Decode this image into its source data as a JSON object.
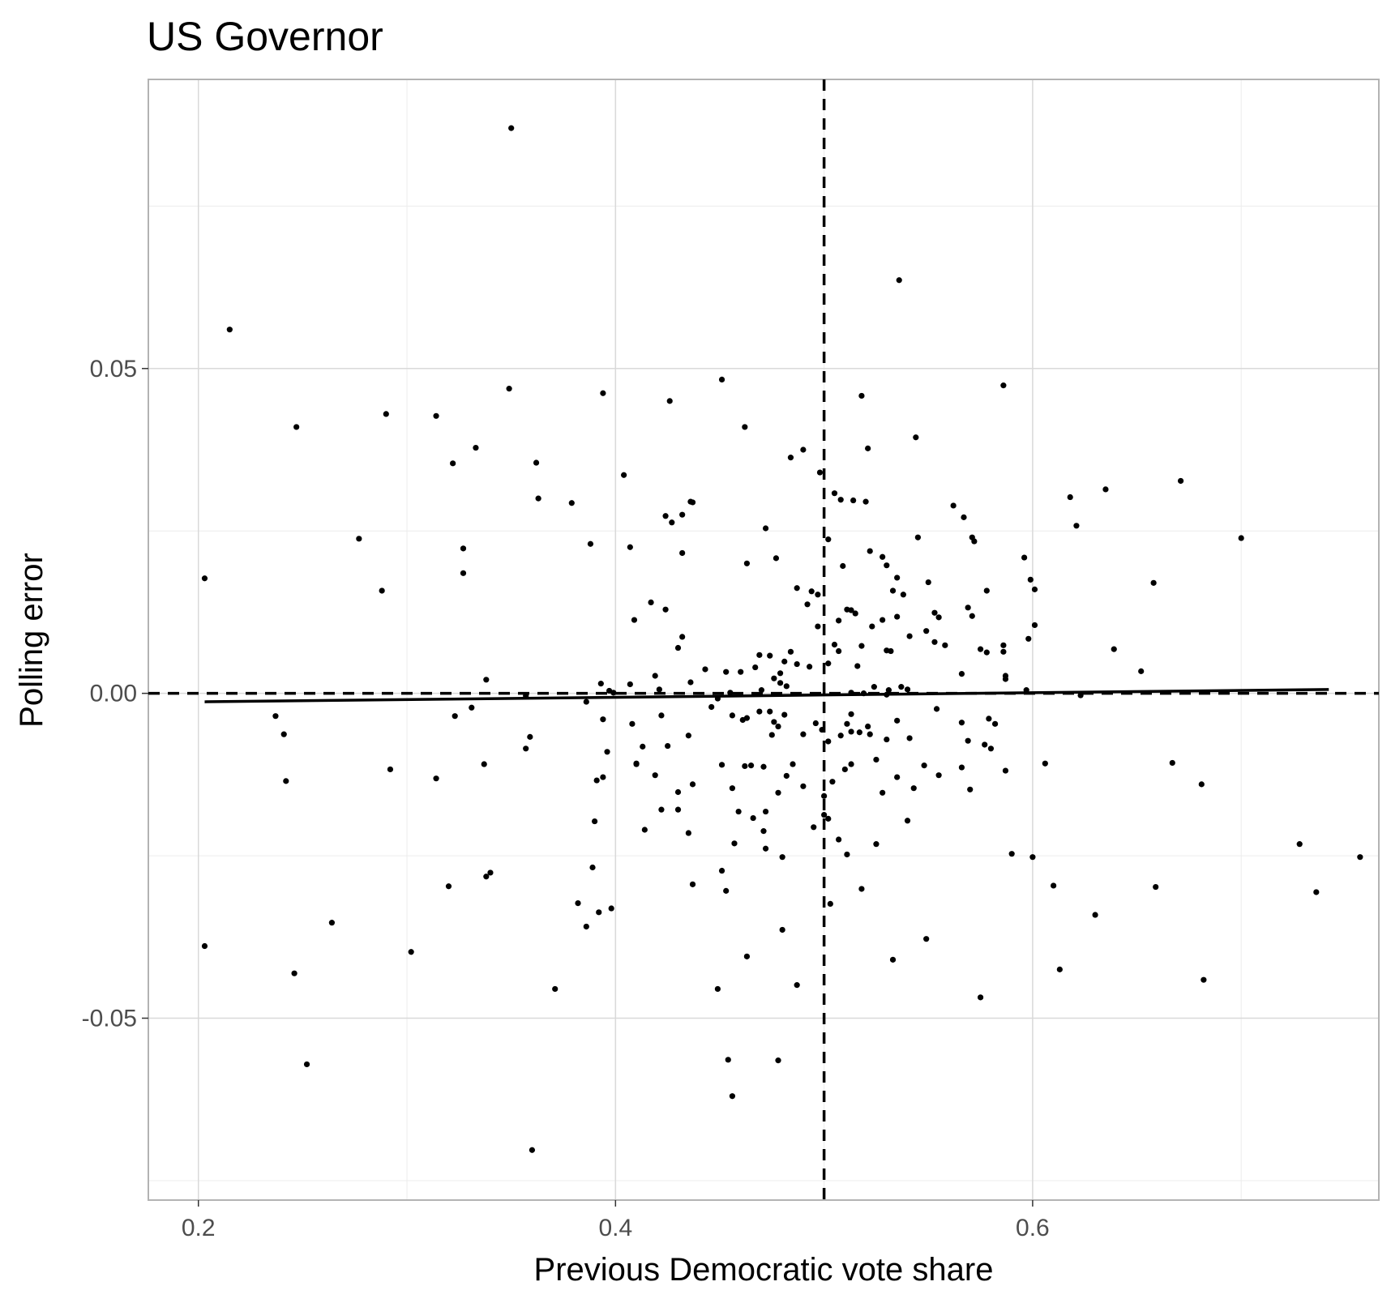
{
  "chart_data": {
    "type": "scatter",
    "title": "US Governor",
    "xlabel": "Previous Democratic vote share",
    "ylabel": "Polling error",
    "xlim": [
      0.176,
      0.766
    ],
    "ylim": [
      -0.078,
      0.0945
    ],
    "x_ticks": [
      0.2,
      0.4,
      0.6
    ],
    "x_tick_labels": [
      "0.2",
      "0.4",
      "0.6"
    ],
    "y_ticks": [
      -0.05,
      0.0,
      0.05
    ],
    "y_tick_labels": [
      "-0.05",
      "0.00",
      "0.05"
    ],
    "grid": true,
    "colors": {
      "points": "#000000",
      "panel_border": "#b3b3b3",
      "grid_major": "#d9d9d9",
      "grid_minor": "#ececec"
    },
    "reference_lines": [
      {
        "orientation": "vertical",
        "value": 0.5,
        "style": "dashed"
      },
      {
        "orientation": "horizontal",
        "value": 0.0,
        "style": "dashed"
      }
    ],
    "fit_line": {
      "x": [
        0.203,
        0.742
      ],
      "y": [
        -0.0013,
        0.0006
      ]
    },
    "points": [
      [
        0.35,
        0.087
      ],
      [
        0.536,
        0.0636
      ],
      [
        0.215,
        0.056
      ],
      [
        0.247,
        0.041
      ],
      [
        0.29,
        0.043
      ],
      [
        0.314,
        0.0427
      ],
      [
        0.349,
        0.0469
      ],
      [
        0.394,
        0.0462
      ],
      [
        0.426,
        0.045
      ],
      [
        0.451,
        0.0483
      ],
      [
        0.462,
        0.041
      ],
      [
        0.518,
        0.0458
      ],
      [
        0.586,
        0.0474
      ],
      [
        0.544,
        0.0394
      ],
      [
        0.322,
        0.0354
      ],
      [
        0.333,
        0.0378
      ],
      [
        0.362,
        0.0355
      ],
      [
        0.404,
        0.0336
      ],
      [
        0.484,
        0.0363
      ],
      [
        0.49,
        0.0375
      ],
      [
        0.498,
        0.034
      ],
      [
        0.521,
        0.0377
      ],
      [
        0.363,
        0.03
      ],
      [
        0.379,
        0.0293
      ],
      [
        0.424,
        0.0273
      ],
      [
        0.427,
        0.0263
      ],
      [
        0.432,
        0.0275
      ],
      [
        0.436,
        0.0295
      ],
      [
        0.437,
        0.0294
      ],
      [
        0.472,
        0.0254
      ],
      [
        0.505,
        0.0308
      ],
      [
        0.508,
        0.0298
      ],
      [
        0.514,
        0.0297
      ],
      [
        0.52,
        0.0295
      ],
      [
        0.562,
        0.0289
      ],
      [
        0.567,
        0.0271
      ],
      [
        0.571,
        0.024
      ],
      [
        0.572,
        0.0234
      ],
      [
        0.618,
        0.0302
      ],
      [
        0.621,
        0.0258
      ],
      [
        0.635,
        0.0314
      ],
      [
        0.671,
        0.0327
      ],
      [
        0.7,
        0.0239
      ],
      [
        0.277,
        0.0238
      ],
      [
        0.327,
        0.0223
      ],
      [
        0.327,
        0.0185
      ],
      [
        0.388,
        0.023
      ],
      [
        0.407,
        0.0225
      ],
      [
        0.432,
        0.0216
      ],
      [
        0.463,
        0.02
      ],
      [
        0.477,
        0.0208
      ],
      [
        0.502,
        0.0237
      ],
      [
        0.509,
        0.0196
      ],
      [
        0.522,
        0.0219
      ],
      [
        0.528,
        0.021
      ],
      [
        0.53,
        0.0197
      ],
      [
        0.535,
        0.0178
      ],
      [
        0.545,
        0.024
      ],
      [
        0.596,
        0.0209
      ],
      [
        0.599,
        0.0175
      ],
      [
        0.601,
        0.016
      ],
      [
        0.658,
        0.017
      ],
      [
        0.203,
        0.0177
      ],
      [
        0.288,
        0.0158
      ],
      [
        0.487,
        0.0162
      ],
      [
        0.494,
        0.0157
      ],
      [
        0.497,
        0.0152
      ],
      [
        0.533,
        0.0158
      ],
      [
        0.538,
        0.0152
      ],
      [
        0.55,
        0.0171
      ],
      [
        0.578,
        0.0158
      ],
      [
        0.417,
        0.014
      ],
      [
        0.424,
        0.0129
      ],
      [
        0.409,
        0.0113
      ],
      [
        0.492,
        0.0137
      ],
      [
        0.507,
        0.0112
      ],
      [
        0.511,
        0.0129
      ],
      [
        0.513,
        0.0128
      ],
      [
        0.523,
        0.0103
      ],
      [
        0.528,
        0.0113
      ],
      [
        0.535,
        0.0118
      ],
      [
        0.549,
        0.0096
      ],
      [
        0.553,
        0.0124
      ],
      [
        0.555,
        0.0117
      ],
      [
        0.569,
        0.0132
      ],
      [
        0.571,
        0.0119
      ],
      [
        0.497,
        0.0103
      ],
      [
        0.43,
        0.007
      ],
      [
        0.432,
        0.0087
      ],
      [
        0.469,
        0.0059
      ],
      [
        0.474,
        0.0058
      ],
      [
        0.484,
        0.0064
      ],
      [
        0.505,
        0.0075
      ],
      [
        0.507,
        0.0065
      ],
      [
        0.515,
        0.0123
      ],
      [
        0.518,
        0.0073
      ],
      [
        0.53,
        0.0066
      ],
      [
        0.532,
        0.0065
      ],
      [
        0.541,
        0.0088
      ],
      [
        0.553,
        0.0079
      ],
      [
        0.558,
        0.0074
      ],
      [
        0.566,
        0.003
      ],
      [
        0.575,
        0.0068
      ],
      [
        0.578,
        0.0063
      ],
      [
        0.586,
        0.0074
      ],
      [
        0.586,
        0.0064
      ],
      [
        0.598,
        0.0084
      ],
      [
        0.601,
        0.0105
      ],
      [
        0.639,
        0.0068
      ],
      [
        0.652,
        0.0034
      ],
      [
        0.338,
        0.0021
      ],
      [
        0.393,
        0.0015
      ],
      [
        0.407,
        0.0014
      ],
      [
        0.419,
        0.0027
      ],
      [
        0.436,
        0.0017
      ],
      [
        0.443,
        0.0037
      ],
      [
        0.453,
        0.0033
      ],
      [
        0.46,
        0.0033
      ],
      [
        0.467,
        0.004
      ],
      [
        0.476,
        0.0023
      ],
      [
        0.479,
        0.0031
      ],
      [
        0.481,
        0.0049
      ],
      [
        0.487,
        0.0045
      ],
      [
        0.493,
        0.0041
      ],
      [
        0.502,
        0.0046
      ],
      [
        0.516,
        0.0042
      ],
      [
        0.537,
        0.001
      ],
      [
        0.54,
        0.0006
      ],
      [
        0.587,
        0.0027
      ],
      [
        0.587,
        0.0022
      ],
      [
        0.397,
        0.0004
      ],
      [
        0.399,
        0.0001
      ],
      [
        0.421,
        0.0006
      ],
      [
        0.455,
        0.0001
      ],
      [
        0.47,
        0.0005
      ],
      [
        0.479,
        0.0016
      ],
      [
        0.482,
        0.0011
      ],
      [
        0.513,
        0.0001
      ],
      [
        0.519,
        0.0
      ],
      [
        0.524,
        0.001
      ],
      [
        0.53,
        -0.0002
      ],
      [
        0.531,
        0.0005
      ],
      [
        0.597,
        0.0005
      ],
      [
        0.623,
        -0.0003
      ],
      [
        0.237,
        -0.0035
      ],
      [
        0.241,
        -0.0063
      ],
      [
        0.323,
        -0.0035
      ],
      [
        0.331,
        -0.0022
      ],
      [
        0.357,
        -0.0085
      ],
      [
        0.359,
        -0.0067
      ],
      [
        0.357,
        -0.0004
      ],
      [
        0.386,
        -0.0013
      ],
      [
        0.394,
        -0.004
      ],
      [
        0.396,
        -0.009
      ],
      [
        0.408,
        -0.0047
      ],
      [
        0.41,
        -0.0108
      ],
      [
        0.413,
        -0.0082
      ],
      [
        0.422,
        -0.0034
      ],
      [
        0.425,
        -0.0081
      ],
      [
        0.435,
        -0.0065
      ],
      [
        0.446,
        -0.0021
      ],
      [
        0.449,
        -0.0008
      ],
      [
        0.456,
        -0.0034
      ],
      [
        0.461,
        -0.0041
      ],
      [
        0.463,
        -0.0038
      ],
      [
        0.465,
        -0.0111
      ],
      [
        0.469,
        -0.0028
      ],
      [
        0.474,
        -0.0028
      ],
      [
        0.475,
        -0.0064
      ],
      [
        0.476,
        -0.0044
      ],
      [
        0.478,
        -0.0051
      ],
      [
        0.481,
        -0.0033
      ],
      [
        0.49,
        -0.0063
      ],
      [
        0.496,
        -0.0046
      ],
      [
        0.499,
        -0.0056
      ],
      [
        0.502,
        -0.0074
      ],
      [
        0.508,
        -0.0065
      ],
      [
        0.511,
        -0.0047
      ],
      [
        0.513,
        -0.0059
      ],
      [
        0.513,
        -0.0032
      ],
      [
        0.517,
        -0.006
      ],
      [
        0.521,
        -0.0051
      ],
      [
        0.522,
        -0.0063
      ],
      [
        0.53,
        -0.0071
      ],
      [
        0.535,
        -0.0042
      ],
      [
        0.541,
        -0.0069
      ],
      [
        0.554,
        -0.0024
      ],
      [
        0.566,
        -0.0045
      ],
      [
        0.569,
        -0.0073
      ],
      [
        0.577,
        -0.0079
      ],
      [
        0.58,
        -0.0085
      ],
      [
        0.582,
        -0.0047
      ],
      [
        0.579,
        -0.0039
      ],
      [
        0.242,
        -0.0135
      ],
      [
        0.292,
        -0.0117
      ],
      [
        0.314,
        -0.0131
      ],
      [
        0.337,
        -0.0109
      ],
      [
        0.391,
        -0.0134
      ],
      [
        0.394,
        -0.0129
      ],
      [
        0.41,
        -0.0109
      ],
      [
        0.419,
        -0.0126
      ],
      [
        0.43,
        -0.0152
      ],
      [
        0.437,
        -0.014
      ],
      [
        0.451,
        -0.011
      ],
      [
        0.456,
        -0.0146
      ],
      [
        0.462,
        -0.0112
      ],
      [
        0.471,
        -0.0113
      ],
      [
        0.478,
        -0.0153
      ],
      [
        0.482,
        -0.0127
      ],
      [
        0.485,
        -0.0109
      ],
      [
        0.49,
        -0.0143
      ],
      [
        0.5,
        -0.0158
      ],
      [
        0.504,
        -0.0136
      ],
      [
        0.51,
        -0.0117
      ],
      [
        0.513,
        -0.0109
      ],
      [
        0.525,
        -0.0102
      ],
      [
        0.535,
        -0.0129
      ],
      [
        0.543,
        -0.0146
      ],
      [
        0.548,
        -0.0111
      ],
      [
        0.555,
        -0.0126
      ],
      [
        0.566,
        -0.0114
      ],
      [
        0.57,
        -0.0148
      ],
      [
        0.587,
        -0.0119
      ],
      [
        0.606,
        -0.0108
      ],
      [
        0.667,
        -0.0107
      ],
      [
        0.681,
        -0.014
      ],
      [
        0.39,
        -0.0197
      ],
      [
        0.414,
        -0.021
      ],
      [
        0.422,
        -0.0179
      ],
      [
        0.43,
        -0.0179
      ],
      [
        0.435,
        -0.0215
      ],
      [
        0.459,
        -0.0182
      ],
      [
        0.466,
        -0.0192
      ],
      [
        0.471,
        -0.0212
      ],
      [
        0.472,
        -0.0182
      ],
      [
        0.495,
        -0.0206
      ],
      [
        0.5,
        -0.0187
      ],
      [
        0.502,
        -0.0193
      ],
      [
        0.525,
        -0.0232
      ],
      [
        0.528,
        -0.0153
      ],
      [
        0.54,
        -0.0196
      ],
      [
        0.457,
        -0.0231
      ],
      [
        0.472,
        -0.0239
      ],
      [
        0.48,
        -0.0252
      ],
      [
        0.507,
        -0.0225
      ],
      [
        0.511,
        -0.0248
      ],
      [
        0.59,
        -0.0247
      ],
      [
        0.6,
        -0.0252
      ],
      [
        0.728,
        -0.0232
      ],
      [
        0.757,
        -0.0252
      ],
      [
        0.389,
        -0.0268
      ],
      [
        0.32,
        -0.0297
      ],
      [
        0.338,
        -0.0282
      ],
      [
        0.34,
        -0.0276
      ],
      [
        0.437,
        -0.0294
      ],
      [
        0.451,
        -0.0273
      ],
      [
        0.453,
        -0.0304
      ],
      [
        0.518,
        -0.0301
      ],
      [
        0.61,
        -0.0296
      ],
      [
        0.659,
        -0.0298
      ],
      [
        0.736,
        -0.0306
      ],
      [
        0.203,
        -0.0389
      ],
      [
        0.264,
        -0.0353
      ],
      [
        0.302,
        -0.0398
      ],
      [
        0.382,
        -0.0323
      ],
      [
        0.386,
        -0.0359
      ],
      [
        0.392,
        -0.0337
      ],
      [
        0.398,
        -0.0331
      ],
      [
        0.48,
        -0.0364
      ],
      [
        0.503,
        -0.0324
      ],
      [
        0.533,
        -0.041
      ],
      [
        0.549,
        -0.0378
      ],
      [
        0.63,
        -0.0341
      ],
      [
        0.246,
        -0.0431
      ],
      [
        0.371,
        -0.0455
      ],
      [
        0.449,
        -0.0455
      ],
      [
        0.463,
        -0.0405
      ],
      [
        0.487,
        -0.0449
      ],
      [
        0.575,
        -0.0468
      ],
      [
        0.613,
        -0.0425
      ],
      [
        0.682,
        -0.0441
      ],
      [
        0.252,
        -0.0571
      ],
      [
        0.454,
        -0.0564
      ],
      [
        0.478,
        -0.0565
      ],
      [
        0.456,
        -0.062
      ],
      [
        0.36,
        -0.0703
      ]
    ]
  }
}
